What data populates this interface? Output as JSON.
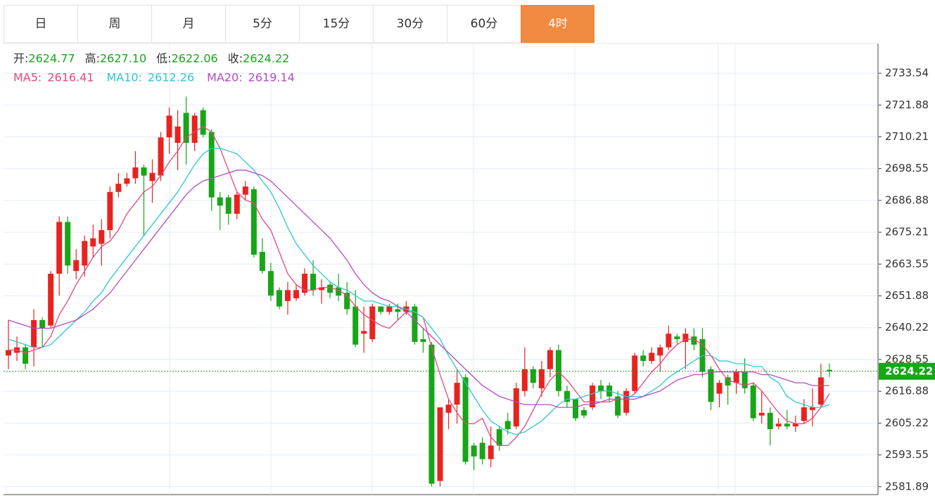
{
  "chart_data": {
    "type": "candlestick",
    "tabs": [
      "日",
      "周",
      "月",
      "5分",
      "15分",
      "30分",
      "60分",
      "4时"
    ],
    "active_tab": 7,
    "active_color": "#f08a40",
    "info": [
      {
        "label": "开:",
        "value": "2624.77"
      },
      {
        "label": "高:",
        "value": "2627.10"
      },
      {
        "label": "低:",
        "value": "2622.06"
      },
      {
        "label": "收:",
        "value": "2624.22"
      }
    ],
    "up_color": "#e8231f",
    "down_color": "#18a518",
    "open": [
      2630,
      2631,
      2633,
      2633,
      2643,
      2641,
      2660,
      2679,
      2661,
      2663,
      2670,
      2671,
      2676,
      2690,
      2693,
      2695,
      2699,
      2694,
      2696,
      2710,
      2708,
      2719,
      2708,
      2720,
      2712,
      2688,
      2688,
      2682,
      2689,
      2691,
      2668,
      2661,
      2654,
      2650,
      2651,
      2653,
      2660,
      2654,
      2656,
      2655,
      2653,
      2648,
      2638,
      2636,
      2648,
      2646,
      2647,
      2646,
      2648,
      2636,
      2634,
      2584,
      2609,
      2612,
      2622,
      2597,
      2598,
      2592,
      2603,
      2606,
      2604,
      2617,
      2625,
      2618,
      2625,
      2632,
      2617,
      2614,
      2610,
      2611,
      2619,
      2619,
      2615,
      2609,
      2617,
      2630,
      2628,
      2630,
      2633,
      2637,
      2635,
      2637,
      2636,
      2625,
      2616,
      2622,
      2620,
      2624,
      2619,
      2608,
      2609,
      2604,
      2605,
      2604,
      2606,
      2610,
      2612,
      2624.77
    ],
    "high": [
      2643,
      2637,
      2634,
      2647,
      2644,
      2661,
      2681,
      2681,
      2669,
      2674,
      2678,
      2680,
      2692,
      2697,
      2697,
      2705,
      2700,
      2702,
      2712,
      2721,
      2720,
      2725,
      2719,
      2721,
      2713,
      2690,
      2689,
      2690,
      2694,
      2692,
      2673,
      2664,
      2655,
      2657,
      2656,
      2662,
      2665,
      2658,
      2657,
      2660,
      2657,
      2654,
      2648,
      2649,
      2648,
      2649,
      2649,
      2650,
      2649,
      2640,
      2635,
      2611,
      2614,
      2625,
      2623,
      2598,
      2600,
      2604,
      2604,
      2609,
      2620,
      2633,
      2626,
      2628,
      2633,
      2634,
      2619,
      2614,
      2611,
      2620,
      2621,
      2620,
      2617,
      2618,
      2631,
      2632,
      2633,
      2634,
      2641,
      2638,
      2640,
      2640,
      2640,
      2626,
      2621,
      2623,
      2625,
      2629,
      2620,
      2617,
      2611,
      2607,
      2610,
      2608,
      2614,
      2618,
      2627,
      2627.1
    ],
    "low": [
      2625,
      2628,
      2625,
      2626,
      2633,
      2640,
      2652,
      2660,
      2658,
      2659,
      2666,
      2663,
      2673,
      2688,
      2692,
      2693,
      2674,
      2686,
      2694,
      2704,
      2698,
      2700,
      2705,
      2710,
      2683,
      2676,
      2678,
      2680,
      2687,
      2666,
      2660,
      2650,
      2647,
      2645,
      2650,
      2652,
      2652,
      2649,
      2651,
      2650,
      2645,
      2633,
      2631,
      2635,
      2645,
      2645,
      2643,
      2645,
      2634,
      2631,
      2582,
      2582,
      2603,
      2605,
      2590,
      2588,
      2590,
      2589,
      2595,
      2601,
      2603,
      2615,
      2618,
      2615,
      2622,
      2615,
      2611,
      2606,
      2607,
      2610,
      2614,
      2613,
      2607,
      2608,
      2616,
      2626,
      2627,
      2624,
      2632,
      2634,
      2625,
      2632,
      2622,
      2610,
      2611,
      2612,
      2616,
      2616,
      2606,
      2605,
      2597,
      2603,
      2603,
      2602,
      2605,
      2604,
      2611,
      2622.06
    ],
    "close": [
      2632,
      2633,
      2627,
      2643,
      2640,
      2660,
      2679,
      2663,
      2665,
      2672,
      2673,
      2676,
      2690,
      2693,
      2695,
      2699,
      2696,
      2697,
      2710,
      2718,
      2714,
      2708,
      2718,
      2711,
      2688,
      2685,
      2682,
      2689,
      2692,
      2667,
      2661,
      2652,
      2648,
      2654,
      2654,
      2660,
      2654,
      2655,
      2653,
      2652,
      2647,
      2634,
      2639,
      2648,
      2646,
      2648,
      2646,
      2648,
      2635,
      2635,
      2583,
      2611,
      2612,
      2620,
      2591,
      2593,
      2592,
      2597,
      2597,
      2603,
      2618,
      2625,
      2620,
      2625,
      2632,
      2617,
      2613,
      2607,
      2608,
      2619,
      2617,
      2615,
      2608,
      2617,
      2630,
      2628,
      2631,
      2633,
      2638,
      2636,
      2638,
      2634,
      2624,
      2613,
      2620,
      2619,
      2624,
      2618,
      2607,
      2609,
      2603,
      2605,
      2604,
      2605,
      2611,
      2611,
      2622,
      2624.22
    ],
    "series": [
      {
        "name": "MA5:",
        "last_label": "2616.41",
        "color": "#e8467c",
        "values": [
          2632,
          2632,
          2631,
          2632,
          2633,
          2637,
          2645,
          2650,
          2656,
          2661,
          2666,
          2670,
          2672,
          2676,
          2682,
          2686,
          2690,
          2692,
          2696,
          2701,
          2705,
          2710,
          2712,
          2714,
          2712,
          2706,
          2698,
          2690,
          2687,
          2686,
          2680,
          2676,
          2668,
          2660,
          2656,
          2654,
          2654,
          2655,
          2655,
          2654,
          2652,
          2648,
          2645,
          2643,
          2641,
          2640,
          2643,
          2646,
          2646,
          2644,
          2633,
          2623,
          2614,
          2609,
          2605,
          2605,
          2607,
          2600,
          2597,
          2597,
          2600,
          2604,
          2610,
          2616,
          2621,
          2624,
          2621,
          2617,
          2613,
          2613,
          2613,
          2613,
          2614,
          2614,
          2616,
          2620,
          2624,
          2627,
          2631,
          2634,
          2636,
          2636,
          2634,
          2630,
          2625,
          2621,
          2620,
          2619,
          2620,
          2617,
          2613,
          2609,
          2606,
          2605,
          2605,
          2607,
          2611,
          2616
        ]
      },
      {
        "name": "MA10:",
        "last_label": "2612.26",
        "color": "#2ec7d0",
        "values": [
          2636,
          2635,
          2634,
          2633,
          2633,
          2634,
          2637,
          2640,
          2643,
          2646,
          2650,
          2653,
          2658,
          2662,
          2666,
          2670,
          2674,
          2678,
          2682,
          2686,
          2690,
          2695,
          2700,
          2704,
          2706,
          2706,
          2705,
          2704,
          2701,
          2698,
          2694,
          2690,
          2684,
          2677,
          2671,
          2667,
          2663,
          2660,
          2657,
          2655,
          2654,
          2652,
          2650,
          2650,
          2649,
          2648,
          2648,
          2647,
          2646,
          2644,
          2640,
          2636,
          2630,
          2625,
          2620,
          2615,
          2610,
          2606,
          2604,
          2602,
          2601,
          2602,
          2604,
          2606,
          2609,
          2612,
          2614,
          2614,
          2615,
          2616,
          2617,
          2617,
          2616,
          2615,
          2615,
          2615,
          2617,
          2619,
          2622,
          2624,
          2626,
          2628,
          2630,
          2630,
          2628,
          2628,
          2627,
          2627,
          2626,
          2626,
          2622,
          2620,
          2615,
          2613,
          2612,
          2611,
          2611,
          2612
        ]
      },
      {
        "name": "MA20:",
        "last_label": "2619.14",
        "color": "#b44cc0",
        "values": [
          2643,
          2642,
          2641,
          2640,
          2640,
          2640,
          2641,
          2642,
          2643,
          2645,
          2647,
          2650,
          2653,
          2657,
          2661,
          2665,
          2669,
          2673,
          2677,
          2681,
          2685,
          2689,
          2692,
          2694,
          2695,
          2696,
          2697,
          2698,
          2698,
          2697,
          2696,
          2694,
          2691,
          2688,
          2685,
          2682,
          2679,
          2676,
          2673,
          2669,
          2665,
          2660,
          2656,
          2653,
          2651,
          2650,
          2648,
          2646,
          2643,
          2640,
          2637,
          2634,
          2631,
          2628,
          2625,
          2622,
          2619,
          2617,
          2615,
          2614,
          2613,
          2612,
          2612,
          2612,
          2612,
          2611,
          2611,
          2611,
          2612,
          2612,
          2613,
          2614,
          2614,
          2614,
          2614,
          2615,
          2616,
          2617,
          2619,
          2621,
          2622,
          2623,
          2623,
          2624,
          2624,
          2624,
          2624,
          2624,
          2624,
          2623,
          2623,
          2622,
          2621,
          2620,
          2620,
          2619,
          2619,
          2619
        ]
      }
    ],
    "ylim": [
      2579.0,
      2744.4
    ],
    "yticks": [
      2733.54,
      2721.88,
      2710.21,
      2698.55,
      2686.88,
      2675.21,
      2663.55,
      2651.88,
      2640.22,
      2628.55,
      2616.88,
      2605.22,
      2593.55,
      2581.89
    ],
    "grid": true,
    "last_price": 2624.22,
    "last_price_color": "#18a518"
  }
}
